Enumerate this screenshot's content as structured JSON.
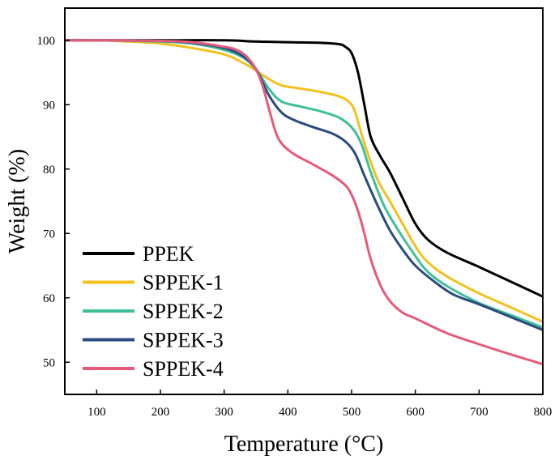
{
  "chart_data": {
    "type": "line",
    "title": "",
    "xlabel": "Temperature (°C)",
    "ylabel": "Weight (%)",
    "xlim": [
      50,
      800
    ],
    "ylim": [
      45,
      105
    ],
    "xticks": [
      100,
      200,
      300,
      400,
      500,
      600,
      700,
      800
    ],
    "yticks": [
      50,
      60,
      70,
      80,
      90,
      100
    ],
    "grid": false,
    "legend_position": "bottom-left",
    "series": [
      {
        "name": "PPEK",
        "color": "#000000",
        "points": [
          [
            50,
            100
          ],
          [
            100,
            100
          ],
          [
            200,
            100
          ],
          [
            300,
            100
          ],
          [
            350,
            99.8
          ],
          [
            400,
            99.7
          ],
          [
            450,
            99.6
          ],
          [
            480,
            99.4
          ],
          [
            490,
            99.0
          ],
          [
            500,
            98.0
          ],
          [
            510,
            95.0
          ],
          [
            520,
            90.0
          ],
          [
            530,
            85.0
          ],
          [
            545,
            82.0
          ],
          [
            560,
            79.5
          ],
          [
            580,
            75.5
          ],
          [
            600,
            71.5
          ],
          [
            620,
            69.0
          ],
          [
            650,
            67.0
          ],
          [
            700,
            64.8
          ],
          [
            750,
            62.5
          ],
          [
            800,
            60.2
          ]
        ]
      },
      {
        "name": "SPPEK-1",
        "color": "#F4C01E",
        "points": [
          [
            50,
            100
          ],
          [
            100,
            100
          ],
          [
            150,
            99.8
          ],
          [
            200,
            99.5
          ],
          [
            250,
            98.8
          ],
          [
            300,
            97.8
          ],
          [
            330,
            96.5
          ],
          [
            350,
            95.3
          ],
          [
            370,
            94.0
          ],
          [
            390,
            93.0
          ],
          [
            420,
            92.5
          ],
          [
            450,
            92.0
          ],
          [
            480,
            91.3
          ],
          [
            495,
            90.5
          ],
          [
            505,
            89.0
          ],
          [
            520,
            84.0
          ],
          [
            540,
            78.5
          ],
          [
            560,
            75.0
          ],
          [
            580,
            71.5
          ],
          [
            600,
            68.0
          ],
          [
            620,
            65.5
          ],
          [
            650,
            63.3
          ],
          [
            700,
            60.7
          ],
          [
            750,
            58.5
          ],
          [
            800,
            56.3
          ]
        ]
      },
      {
        "name": "SPPEK-2",
        "color": "#3FBF9A",
        "points": [
          [
            50,
            100
          ],
          [
            100,
            100
          ],
          [
            200,
            99.8
          ],
          [
            250,
            99.5
          ],
          [
            300,
            98.5
          ],
          [
            330,
            97.3
          ],
          [
            350,
            95.5
          ],
          [
            370,
            92.5
          ],
          [
            390,
            90.5
          ],
          [
            420,
            89.7
          ],
          [
            450,
            89.0
          ],
          [
            480,
            88.0
          ],
          [
            500,
            86.5
          ],
          [
            515,
            84.0
          ],
          [
            530,
            79.5
          ],
          [
            550,
            74.5
          ],
          [
            570,
            71.0
          ],
          [
            600,
            66.5
          ],
          [
            620,
            64.0
          ],
          [
            650,
            61.8
          ],
          [
            700,
            59.2
          ],
          [
            750,
            57.3
          ],
          [
            800,
            55.4
          ]
        ]
      },
      {
        "name": "SPPEK-3",
        "color": "#2B4A7E",
        "points": [
          [
            50,
            100
          ],
          [
            100,
            100
          ],
          [
            200,
            99.9
          ],
          [
            250,
            99.6
          ],
          [
            300,
            98.8
          ],
          [
            330,
            97.5
          ],
          [
            350,
            95.5
          ],
          [
            370,
            91.5
          ],
          [
            390,
            88.8
          ],
          [
            410,
            87.6
          ],
          [
            440,
            86.5
          ],
          [
            470,
            85.5
          ],
          [
            490,
            84.3
          ],
          [
            505,
            82.5
          ],
          [
            520,
            79.0
          ],
          [
            540,
            74.5
          ],
          [
            560,
            70.5
          ],
          [
            580,
            67.5
          ],
          [
            600,
            65.0
          ],
          [
            630,
            62.5
          ],
          [
            660,
            60.5
          ],
          [
            700,
            59.0
          ],
          [
            750,
            57.0
          ],
          [
            800,
            55.0
          ]
        ]
      },
      {
        "name": "SPPEK-4",
        "color": "#E55A7A",
        "points": [
          [
            50,
            100
          ],
          [
            100,
            100
          ],
          [
            200,
            99.9
          ],
          [
            250,
            99.7
          ],
          [
            300,
            99.0
          ],
          [
            320,
            98.5
          ],
          [
            335,
            97.5
          ],
          [
            350,
            95.5
          ],
          [
            360,
            93.0
          ],
          [
            370,
            89.5
          ],
          [
            380,
            86.0
          ],
          [
            390,
            84.0
          ],
          [
            410,
            82.3
          ],
          [
            440,
            80.7
          ],
          [
            470,
            79.0
          ],
          [
            490,
            77.5
          ],
          [
            500,
            76.0
          ],
          [
            510,
            73.5
          ],
          [
            520,
            70.0
          ],
          [
            530,
            66.0
          ],
          [
            545,
            62.0
          ],
          [
            560,
            59.5
          ],
          [
            580,
            57.7
          ],
          [
            600,
            56.8
          ],
          [
            650,
            54.5
          ],
          [
            700,
            52.8
          ],
          [
            750,
            51.2
          ],
          [
            800,
            49.7
          ]
        ]
      }
    ]
  }
}
